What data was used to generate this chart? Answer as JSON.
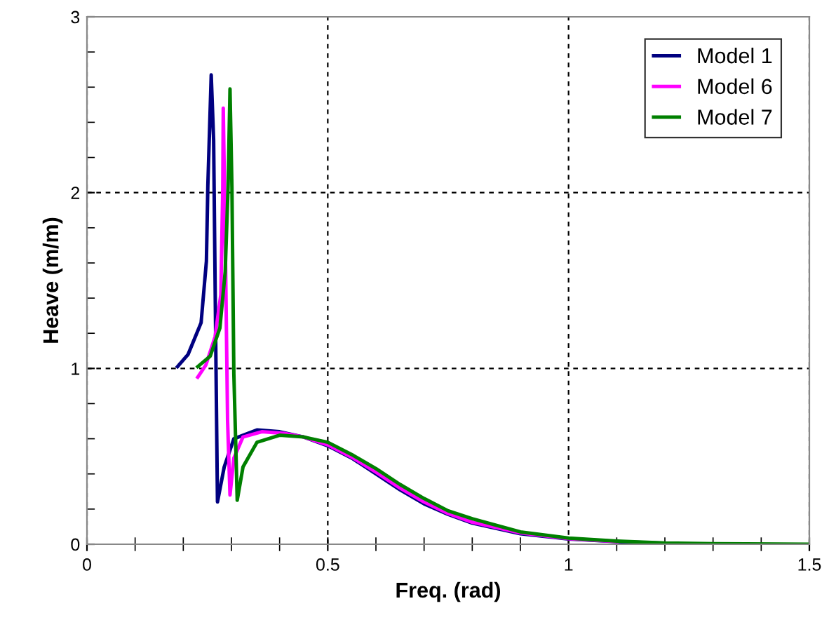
{
  "chart_data": {
    "type": "line",
    "xlabel": "Freq. (rad)",
    "ylabel": "Heave (m/m)",
    "xlim": [
      0,
      1.5
    ],
    "xticks": [
      0,
      0.5,
      1,
      1.5
    ],
    "ylim": [
      0,
      3
    ],
    "yticks": [
      0,
      1,
      2,
      3
    ],
    "grid": true,
    "legend": "top right",
    "line_style": "solid",
    "marker": "none",
    "series": [
      {
        "name": "Model 1",
        "color": "#000080",
        "x": [
          0.188,
          0.21,
          0.237,
          0.248,
          0.251,
          0.258,
          0.263,
          0.267,
          0.271,
          0.285,
          0.305,
          0.353,
          0.4,
          0.45,
          0.5,
          0.55,
          0.6,
          0.65,
          0.7,
          0.75,
          0.8,
          0.9,
          1.0,
          1.1,
          1.2
        ],
        "values": [
          1.01,
          1.08,
          1.26,
          1.61,
          2.04,
          2.67,
          2.3,
          1.24,
          0.24,
          0.44,
          0.6,
          0.65,
          0.64,
          0.61,
          0.56,
          0.49,
          0.4,
          0.31,
          0.23,
          0.17,
          0.12,
          0.06,
          0.03,
          0.015,
          0.005
        ]
      },
      {
        "name": "Model 6",
        "color": "#ff00ff",
        "x": [
          0.23,
          0.247,
          0.266,
          0.278,
          0.282,
          0.283,
          0.287,
          0.292,
          0.297,
          0.305,
          0.324,
          0.363,
          0.41,
          0.45,
          0.5,
          0.55,
          0.6,
          0.65,
          0.7,
          0.75,
          0.8,
          0.9,
          1.0,
          1.1
        ],
        "values": [
          0.95,
          1.02,
          1.18,
          1.42,
          2.03,
          2.48,
          1.77,
          0.7,
          0.28,
          0.49,
          0.61,
          0.64,
          0.63,
          0.61,
          0.565,
          0.495,
          0.41,
          0.32,
          0.24,
          0.175,
          0.125,
          0.065,
          0.032,
          0.016
        ]
      },
      {
        "name": "Model 7",
        "color": "#008000",
        "x": [
          0.23,
          0.256,
          0.276,
          0.287,
          0.293,
          0.297,
          0.301,
          0.305,
          0.312,
          0.324,
          0.353,
          0.4,
          0.45,
          0.5,
          0.55,
          0.6,
          0.65,
          0.7,
          0.75,
          0.8,
          0.9,
          1.0,
          1.1,
          1.2,
          1.3,
          1.5
        ],
        "values": [
          1.01,
          1.07,
          1.23,
          1.55,
          2.03,
          2.59,
          2.03,
          0.97,
          0.25,
          0.44,
          0.58,
          0.62,
          0.61,
          0.58,
          0.51,
          0.43,
          0.34,
          0.26,
          0.19,
          0.145,
          0.07,
          0.035,
          0.018,
          0.007,
          0.003,
          0.0
        ]
      }
    ]
  }
}
